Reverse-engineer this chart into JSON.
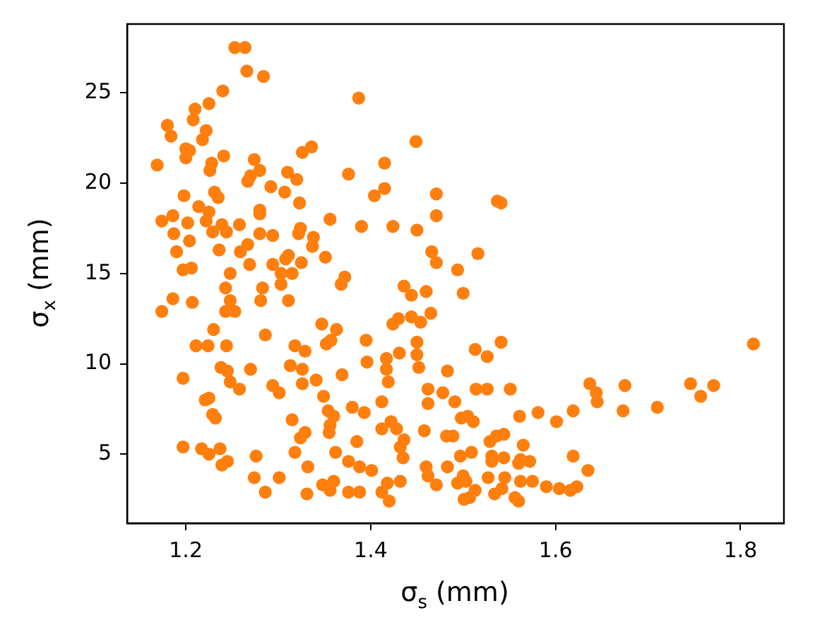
{
  "chart_data": {
    "type": "scatter",
    "xlabel": "σ$_{s}$ (mm)",
    "ylabel": "σ$_{x}$ (mm)",
    "xlim": [
      1.1365,
      1.847
    ],
    "ylim": [
      1.18,
      28.8
    ],
    "xticks": [
      1.2,
      1.4,
      1.6,
      1.8
    ],
    "yticks": [
      5,
      10,
      15,
      20,
      25
    ],
    "grid": false,
    "legend": false,
    "marker": "circle",
    "x": [
      1.253,
      1.264,
      1.266,
      1.284,
      1.387,
      1.24,
      1.225,
      1.21,
      1.208,
      1.18,
      1.184,
      1.222,
      1.218,
      1.449,
      1.326,
      1.336,
      1.241,
      1.228,
      1.226,
      1.169,
      1.2,
      1.204,
      1.2,
      1.274,
      1.28,
      1.27,
      1.267,
      1.415,
      1.31,
      1.32,
      1.292,
      1.307,
      1.376,
      1.415,
      1.404,
      1.471,
      1.537,
      1.541,
      1.198,
      1.231,
      1.235,
      1.214,
      1.225,
      1.222,
      1.186,
      1.174,
      1.202,
      1.323,
      1.28,
      1.28,
      1.239,
      1.244,
      1.258,
      1.324,
      1.322,
      1.356,
      1.39,
      1.424,
      1.471,
      1.45,
      1.187,
      1.229,
      1.28,
      1.294,
      1.338,
      1.337,
      1.204,
      1.19,
      1.236,
      1.259,
      1.267,
      1.311,
      1.308,
      1.351,
      1.325,
      1.269,
      1.294,
      1.466,
      1.471,
      1.516,
      1.494,
      1.197,
      1.206,
      1.248,
      1.303,
      1.315,
      1.243,
      1.303,
      1.372,
      1.368,
      1.283,
      1.436,
      1.46,
      1.444,
      1.5,
      1.174,
      1.186,
      1.207,
      1.248,
      1.281,
      1.311,
      1.243,
      1.253,
      1.465,
      1.43,
      1.444,
      1.454,
      1.424,
      1.347,
      1.363,
      1.23,
      1.286,
      1.211,
      1.224,
      1.244,
      1.318,
      1.329,
      1.352,
      1.357,
      1.395,
      1.45,
      1.541,
      1.513,
      1.526,
      1.814,
      1.45,
      1.452,
      1.417,
      1.417,
      1.431,
      1.396,
      1.313,
      1.326,
      1.27,
      1.238,
      1.245,
      1.248,
      1.258,
      1.197,
      1.369,
      1.483,
      1.294,
      1.301,
      1.326,
      1.341,
      1.419,
      1.462,
      1.478,
      1.514,
      1.526,
      1.551,
      1.637,
      1.644,
      1.645,
      1.675,
      1.746,
      1.757,
      1.771,
      1.71,
      1.673,
      1.619,
      1.601,
      1.581,
      1.561,
      1.225,
      1.221,
      1.349,
      1.38,
      1.393,
      1.412,
      1.462,
      1.491,
      1.229,
      1.232,
      1.354,
      1.36,
      1.498,
      1.505,
      1.511,
      1.315,
      1.329,
      1.324,
      1.356,
      1.355,
      1.412,
      1.422,
      1.428,
      1.458,
      1.482,
      1.489,
      1.529,
      1.536,
      1.544,
      1.436,
      1.432,
      1.385,
      1.362,
      1.318,
      1.197,
      1.217,
      1.225,
      1.237,
      1.276,
      1.435,
      1.565,
      1.531,
      1.531,
      1.497,
      1.509,
      1.544,
      1.562,
      1.56,
      1.572,
      1.619,
      1.635,
      1.245,
      1.239,
      1.376,
      1.388,
      1.401,
      1.332,
      1.46,
      1.483,
      1.462,
      1.471,
      1.274,
      1.301,
      1.5,
      1.503,
      1.527,
      1.545,
      1.562,
      1.575,
      1.494,
      1.348,
      1.36,
      1.356,
      1.418,
      1.432,
      1.286,
      1.331,
      1.376,
      1.388,
      1.412,
      1.42,
      1.513,
      1.507,
      1.501,
      1.542,
      1.534,
      1.556,
      1.56,
      1.59,
      1.604,
      1.616,
      1.623
    ],
    "series": [
      {
        "color": "#ff7f0e",
        "values": [
          27.5,
          27.5,
          26.2,
          25.9,
          24.7,
          25.1,
          24.4,
          24.1,
          23.5,
          23.2,
          22.6,
          22.9,
          22.4,
          22.3,
          21.7,
          22.0,
          21.5,
          21.1,
          20.7,
          21.0,
          21.9,
          21.8,
          21.4,
          21.3,
          20.7,
          20.4,
          20.1,
          21.1,
          20.6,
          20.2,
          19.8,
          19.5,
          20.5,
          19.7,
          19.3,
          19.4,
          19.0,
          18.9,
          19.3,
          19.5,
          19.2,
          18.7,
          18.4,
          17.9,
          18.2,
          17.9,
          17.8,
          18.9,
          18.5,
          18.3,
          17.7,
          17.3,
          17.7,
          17.5,
          17.2,
          18.0,
          17.6,
          17.6,
          18.2,
          17.4,
          17.2,
          17.3,
          17.2,
          17.1,
          17.0,
          16.5,
          16.8,
          16.2,
          16.3,
          16.2,
          16.6,
          16.0,
          15.8,
          15.9,
          15.6,
          15.5,
          15.5,
          16.2,
          15.6,
          16.1,
          15.2,
          15.2,
          15.3,
          15.0,
          15.0,
          15.0,
          14.2,
          14.4,
          14.8,
          14.4,
          14.2,
          14.3,
          14.0,
          13.8,
          13.9,
          12.9,
          13.6,
          13.4,
          13.5,
          13.5,
          13.5,
          12.9,
          12.9,
          12.8,
          12.5,
          12.6,
          12.3,
          12.2,
          12.2,
          11.9,
          11.9,
          11.6,
          11.0,
          11.0,
          11.0,
          11.0,
          10.7,
          11.1,
          11.3,
          11.3,
          11.2,
          11.2,
          10.8,
          10.4,
          11.1,
          10.5,
          9.8,
          10.3,
          9.7,
          10.6,
          10.1,
          9.9,
          9.7,
          9.7,
          9.8,
          9.6,
          9.0,
          8.6,
          9.2,
          9.4,
          9.6,
          8.8,
          8.4,
          8.9,
          9.1,
          9.0,
          8.6,
          8.4,
          8.6,
          8.6,
          8.6,
          8.9,
          8.4,
          7.9,
          8.8,
          8.9,
          8.2,
          8.8,
          7.6,
          7.4,
          7.4,
          6.8,
          7.3,
          7.1,
          8.1,
          8.0,
          8.2,
          7.6,
          7.3,
          7.9,
          7.8,
          7.9,
          7.2,
          7.0,
          7.4,
          7.1,
          7.0,
          7.1,
          6.8,
          6.9,
          6.2,
          5.9,
          6.6,
          6.2,
          6.4,
          6.8,
          6.4,
          6.3,
          6.0,
          6.0,
          5.7,
          6.0,
          6.1,
          5.8,
          5.4,
          5.7,
          5.1,
          5.1,
          5.4,
          5.3,
          5.0,
          5.3,
          4.9,
          4.8,
          5.5,
          4.9,
          4.6,
          4.9,
          5.1,
          4.8,
          4.7,
          4.5,
          4.6,
          4.9,
          4.1,
          4.6,
          4.4,
          4.6,
          4.3,
          4.1,
          4.3,
          4.3,
          4.3,
          3.8,
          3.3,
          3.7,
          3.7,
          3.8,
          3.5,
          3.7,
          3.7,
          3.5,
          3.5,
          3.4,
          3.3,
          3.5,
          3.0,
          3.4,
          3.5,
          2.9,
          2.8,
          2.9,
          2.9,
          2.9,
          2.4,
          3.0,
          2.6,
          2.5,
          3.1,
          2.8,
          2.6,
          2.4,
          3.2,
          3.1,
          3.0,
          3.2
        ]
      }
    ]
  }
}
